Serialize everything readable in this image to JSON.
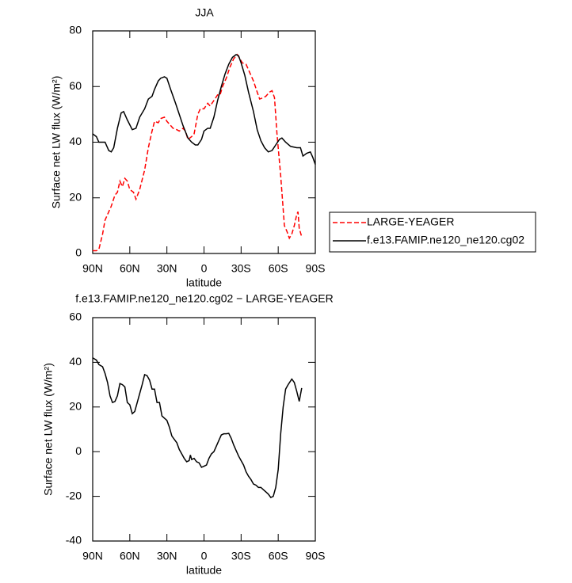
{
  "chart_data": [
    {
      "type": "line",
      "title": "JJA",
      "xlabel": "latitude",
      "ylabel": "Surface net LW flux (W/m²)",
      "xlim": [
        90,
        -90
      ],
      "xticks": [
        {
          "value": 90,
          "label": "90N"
        },
        {
          "value": 60,
          "label": "60N"
        },
        {
          "value": 30,
          "label": "30N"
        },
        0,
        {
          "value": -30,
          "label": "30S"
        },
        {
          "value": -60,
          "label": "60S"
        },
        {
          "value": -90,
          "label": "90S"
        }
      ],
      "ylim": [
        0,
        80
      ],
      "yticks": [
        0,
        20,
        40,
        60,
        80
      ],
      "legend": "right",
      "series": [
        {
          "name": "LARGE-YEAGER",
          "color": "#ff0000",
          "linestyle": "dashed",
          "x": [
            90,
            87,
            85,
            82,
            80,
            77,
            75,
            72,
            70,
            68,
            66,
            64,
            62,
            60,
            57,
            55,
            52,
            48,
            45,
            42,
            40,
            37,
            35,
            32,
            30,
            27,
            25,
            22,
            20,
            17,
            15,
            13,
            10,
            8,
            5,
            3,
            0,
            -3,
            -5,
            -8,
            -11,
            -13,
            -15,
            -18,
            -21,
            -24,
            -27,
            -29,
            -31,
            -34,
            -37,
            -40,
            -43,
            -45,
            -48,
            -50,
            -53,
            -55,
            -57,
            -59,
            -62,
            -65,
            -67,
            -69,
            -71,
            -73,
            -75,
            -76,
            -77,
            -79
          ],
          "values": [
            1,
            1,
            1.5,
            7,
            12,
            15,
            17,
            21,
            22,
            26,
            24,
            27,
            26,
            23,
            22,
            19.5,
            23,
            30,
            38,
            44,
            47.5,
            47,
            48.5,
            49,
            47.5,
            46,
            45,
            44.5,
            44,
            45,
            44,
            41,
            42,
            43,
            50,
            52,
            52,
            54,
            53,
            55,
            57,
            57,
            60,
            63,
            67,
            70,
            71.5,
            70,
            68.5,
            68,
            65,
            62,
            58,
            55.5,
            56,
            56.5,
            58,
            58.5,
            56,
            43,
            28,
            10,
            8,
            5.5,
            7,
            10,
            14,
            15,
            9,
            6
          ]
        },
        {
          "name": "f.e13.FAMIP.ne120_ne120.cg02",
          "color": "#000000",
          "linestyle": "solid",
          "x": [
            90,
            87,
            85,
            80,
            77,
            75,
            73,
            70,
            67,
            65,
            62,
            58,
            55,
            52,
            48,
            45,
            42,
            40,
            37,
            35,
            32,
            30,
            27,
            23,
            20,
            17,
            13,
            10,
            7,
            5,
            2,
            0,
            -3,
            -5,
            -8,
            -11,
            -14,
            -17,
            -20,
            -23,
            -26,
            -28,
            -30,
            -33,
            -36,
            -40,
            -43,
            -46,
            -49,
            -52,
            -55,
            -58,
            -61,
            -63,
            -66,
            -70,
            -75,
            -78,
            -80,
            -83,
            -86,
            -88,
            -90
          ],
          "values": [
            43,
            42,
            40,
            40,
            37,
            36.5,
            38,
            45,
            50.5,
            51,
            48,
            44.5,
            45,
            49,
            52,
            55.5,
            56.5,
            59,
            62,
            63,
            63.5,
            63,
            59,
            54,
            50,
            46,
            41.5,
            40,
            39,
            39,
            41,
            44,
            45,
            45,
            49,
            55,
            60,
            64.5,
            68,
            70.5,
            71.5,
            71,
            68.5,
            64,
            58,
            51,
            44.5,
            40.5,
            38,
            36.5,
            37,
            39,
            41,
            41.5,
            40,
            38.5,
            38,
            38,
            35,
            36,
            36.5,
            34.5,
            32
          ]
        }
      ]
    },
    {
      "type": "line",
      "title": "f.e13.FAMIP.ne120_ne120.cg02 − LARGE-YEAGER",
      "xlabel": "latitude",
      "ylabel": "Surface net LW flux (W/m²)",
      "xlim": [
        90,
        -90
      ],
      "xticks": [
        {
          "value": 90,
          "label": "90N"
        },
        {
          "value": 60,
          "label": "60N"
        },
        {
          "value": 30,
          "label": "30N"
        },
        0,
        {
          "value": -30,
          "label": "30S"
        },
        {
          "value": -60,
          "label": "60S"
        },
        {
          "value": -90,
          "label": "90S"
        }
      ],
      "ylim": [
        -40,
        60
      ],
      "yticks": [
        -40,
        -20,
        0,
        20,
        40,
        60
      ],
      "series": [
        {
          "color": "#000000",
          "linestyle": "solid",
          "x": [
            90,
            87,
            85,
            82,
            80,
            78,
            76,
            74,
            72,
            70,
            68,
            66,
            64,
            62,
            60,
            58,
            56,
            54,
            52,
            50,
            48,
            46,
            44,
            42,
            40,
            38,
            36,
            34,
            32,
            30,
            28,
            26,
            24,
            22,
            20,
            18,
            16,
            14,
            12,
            11,
            10,
            8,
            6,
            4,
            2,
            0,
            -2,
            -4,
            -6,
            -8,
            -10,
            -12,
            -14,
            -16,
            -18,
            -20,
            -22,
            -24,
            -26,
            -28,
            -30,
            -32,
            -34,
            -36,
            -38,
            -40,
            -42,
            -44,
            -46,
            -48,
            -50,
            -52,
            -54,
            -56,
            -58,
            -60,
            -62,
            -64,
            -66,
            -68,
            -71,
            -73,
            -75,
            -77,
            -79
          ],
          "values": [
            42,
            41,
            39,
            38,
            35,
            31,
            25,
            22,
            22.5,
            25,
            30.5,
            30,
            29,
            22,
            21,
            17,
            18,
            22,
            26,
            30,
            34.5,
            34,
            32,
            28,
            28,
            22,
            22,
            16,
            15,
            14,
            11,
            7,
            5.5,
            4,
            1,
            -1,
            -3,
            -4.5,
            -4,
            -1.5,
            -3.5,
            -3,
            -4.5,
            -5,
            -7,
            -6.5,
            -6,
            -3,
            -1,
            0,
            2.5,
            5,
            7.5,
            8,
            8,
            8.2,
            6,
            3,
            0.5,
            -2,
            -4,
            -6,
            -9,
            -11,
            -12.5,
            -14.5,
            -15,
            -16,
            -16,
            -17,
            -18,
            -19,
            -20.5,
            -20,
            -16,
            -8,
            8,
            20,
            28,
            30,
            32.5,
            31,
            27,
            22.5,
            28.5
          ]
        }
      ]
    }
  ]
}
